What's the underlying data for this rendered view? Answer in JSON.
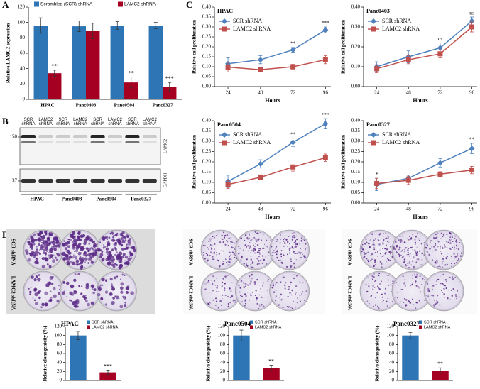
{
  "panel_labels": [
    "A",
    "B",
    "C",
    "D"
  ],
  "chart_data": [
    {
      "type": "bar",
      "ylabel": "Relative LAMC2 expression",
      "legend": "top",
      "categories": [
        "HPAC",
        "Panc0403",
        "Panc0504",
        "Panc0327"
      ],
      "series": [
        {
          "name": "Scrambled (SCR) shRNA",
          "color": "#2e75b6",
          "values": [
            96,
            95,
            96,
            96
          ],
          "errors": [
            10,
            7,
            5,
            4
          ]
        },
        {
          "name": "LAMC2 shRNA",
          "color": "#a50021",
          "values": [
            34,
            89,
            22,
            16
          ],
          "errors": [
            4,
            10,
            7,
            6
          ]
        }
      ],
      "annotations": [
        "**",
        null,
        "**",
        "***"
      ],
      "ylim": [
        0,
        120
      ],
      "yticks": [
        0,
        20,
        40,
        60,
        80,
        100,
        120
      ]
    },
    {
      "type": "line",
      "title": "HPAC",
      "xlabel": "Hours",
      "ylabel": "Relative cell proliferation",
      "legend": "upper left",
      "x": [
        24,
        48,
        72,
        96
      ],
      "xlim": [
        14,
        100
      ],
      "xticks": [
        24,
        48,
        72,
        96
      ],
      "series": [
        {
          "name": "SCR shRNA",
          "color": "#4f81bd",
          "marker": "diamond",
          "values": [
            0.115,
            0.135,
            0.185,
            0.285
          ],
          "errors": [
            0.03,
            0.02,
            0.012,
            0.015
          ]
        },
        {
          "name": "LAMC2 shRNA",
          "color": "#c0504d",
          "marker": "square",
          "values": [
            0.098,
            0.085,
            0.1,
            0.135
          ],
          "errors": [
            0.025,
            0.012,
            0.012,
            0.02
          ]
        }
      ],
      "annotations": [
        null,
        null,
        "**",
        "***"
      ],
      "ylim": [
        0,
        0.4
      ],
      "yticks": [
        {
          "value": 0,
          "label": "0.00"
        },
        {
          "value": 0.05,
          "label": "0.05"
        },
        {
          "value": 0.1,
          "label": "0.10"
        },
        {
          "value": 0.15,
          "label": "0.15"
        },
        {
          "value": 0.2,
          "label": "0.20"
        },
        {
          "value": 0.25,
          "label": "0.25"
        },
        {
          "value": 0.3,
          "label": "0.30"
        },
        {
          "value": 0.35,
          "label": "0.35"
        },
        {
          "value": 0.4,
          "label": "0.40"
        }
      ]
    },
    {
      "type": "line",
      "title": "Panc0403",
      "xlabel": "Hours",
      "ylabel": "Relative cell proliferation",
      "legend": "upper left",
      "x": [
        24,
        48,
        72,
        96
      ],
      "xlim": [
        14,
        100
      ],
      "xticks": [
        24,
        48,
        72,
        96
      ],
      "series": [
        {
          "name": "SCR shRNA",
          "color": "#4f81bd",
          "marker": "diamond",
          "values": [
            0.1,
            0.15,
            0.195,
            0.33
          ],
          "errors": [
            0.025,
            0.03,
            0.025,
            0.02
          ]
        },
        {
          "name": "LAMC2 shRNA",
          "color": "#c0504d",
          "marker": "square",
          "values": [
            0.09,
            0.135,
            0.165,
            0.3
          ],
          "errors": [
            0.02,
            0.02,
            0.02,
            0.025
          ]
        }
      ],
      "annotations": [
        null,
        null,
        "ns",
        "ns"
      ],
      "ylim": [
        0,
        0.4
      ],
      "yticks": [
        {
          "value": 0,
          "label": "0.00"
        },
        {
          "value": 0.1,
          "label": "0.10"
        },
        {
          "value": 0.2,
          "label": "0.20"
        },
        {
          "value": 0.3,
          "label": "0.30"
        },
        {
          "value": 0.4,
          "label": "0.40"
        }
      ]
    },
    {
      "type": "line",
      "title": "Panc0504",
      "xlabel": "Hours",
      "ylabel": "Relative cell proliferation",
      "legend": "upper left",
      "x": [
        24,
        48,
        72,
        96
      ],
      "xlim": [
        14,
        100
      ],
      "xticks": [
        24,
        48,
        72,
        96
      ],
      "series": [
        {
          "name": "SCR shRNA",
          "color": "#4f81bd",
          "marker": "diamond",
          "values": [
            0.105,
            0.19,
            0.295,
            0.385
          ],
          "errors": [
            0.03,
            0.02,
            0.02,
            0.025
          ]
        },
        {
          "name": "LAMC2 shRNA",
          "color": "#c0504d",
          "marker": "square",
          "values": [
            0.09,
            0.125,
            0.175,
            0.22
          ],
          "errors": [
            0.02,
            0.012,
            0.02,
            0.018
          ]
        }
      ],
      "annotations": [
        null,
        null,
        "**",
        "***"
      ],
      "ylim": [
        0,
        0.4
      ],
      "yticks": [
        {
          "value": 0,
          "label": "0.00"
        },
        {
          "value": 0.05,
          "label": "0.05"
        },
        {
          "value": 0.1,
          "label": "0.10"
        },
        {
          "value": 0.15,
          "label": "0.15"
        },
        {
          "value": 0.2,
          "label": "0.20"
        },
        {
          "value": 0.25,
          "label": "0.25"
        },
        {
          "value": 0.3,
          "label": "0.30"
        },
        {
          "value": 0.35,
          "label": "0.35"
        },
        {
          "value": 0.4,
          "label": "0.40"
        }
      ]
    },
    {
      "type": "line",
      "title": "Panc0327",
      "xlabel": "Hours",
      "ylabel": "Relative cell proliferation",
      "legend": "upper left",
      "x": [
        24,
        48,
        72,
        96
      ],
      "xlim": [
        14,
        100
      ],
      "xticks": [
        24,
        48,
        72,
        96
      ],
      "series": [
        {
          "name": "SCR shRNA",
          "color": "#4f81bd",
          "marker": "diamond",
          "values": [
            0.09,
            0.12,
            0.195,
            0.265
          ],
          "errors": [
            0.03,
            0.015,
            0.02,
            0.025
          ]
        },
        {
          "name": "LAMC2 shRNA",
          "color": "#c0504d",
          "marker": "square",
          "values": [
            0.095,
            0.11,
            0.14,
            0.16
          ],
          "errors": [
            0.025,
            0.02,
            0.012,
            0.018
          ]
        }
      ],
      "annotations": [
        "*",
        null,
        null,
        "**"
      ],
      "ylim": [
        0,
        0.4
      ],
      "yticks": [
        {
          "value": 0,
          "label": "0.00"
        },
        {
          "value": 0.05,
          "label": "0.05"
        },
        {
          "value": 0.1,
          "label": "0.10"
        },
        {
          "value": 0.15,
          "label": "0.15"
        },
        {
          "value": 0.2,
          "label": "0.20"
        },
        {
          "value": 0.25,
          "label": "0.25"
        },
        {
          "value": 0.3,
          "label": "0.30"
        },
        {
          "value": 0.35,
          "label": "0.35"
        },
        {
          "value": 0.4,
          "label": "0.40"
        }
      ]
    },
    {
      "type": "bar",
      "title": "HPAC",
      "ylabel": "Relative clonogenicity (%)",
      "legend": "top right",
      "categories": [
        null
      ],
      "series": [
        {
          "name": "SCR shRNA",
          "color": "#2e75b6",
          "values": [
            100
          ],
          "errors": [
            9
          ]
        },
        {
          "name": "LAMC2 shRNA",
          "color": "#a50021",
          "values": [
            18
          ],
          "errors": [
            5
          ]
        }
      ],
      "annotations": [
        "***"
      ],
      "ylim": [
        0,
        120
      ],
      "yticks": [
        0,
        20,
        40,
        60,
        80,
        100,
        120
      ]
    },
    {
      "type": "bar",
      "title": "Panc0504",
      "ylabel": "Relative clonogenicity (%)",
      "legend": "top right",
      "categories": [
        null
      ],
      "series": [
        {
          "name": "SCR shRNA",
          "color": "#2e75b6",
          "values": [
            100
          ],
          "errors": [
            12
          ]
        },
        {
          "name": "LAMC2 shRNA",
          "color": "#a50021",
          "values": [
            28
          ],
          "errors": [
            6
          ]
        }
      ],
      "annotations": [
        "**"
      ],
      "ylim": [
        0,
        120
      ],
      "yticks": [
        0,
        20,
        40,
        60,
        80,
        100,
        120
      ]
    },
    {
      "type": "bar",
      "title": "Panc0327",
      "ylabel": "Relative clonogenicity (%)",
      "legend": "top right",
      "categories": [
        null
      ],
      "series": [
        {
          "name": "SCR shRNA",
          "color": "#2e75b6",
          "values": [
            100
          ],
          "errors": [
            7
          ]
        },
        {
          "name": "LAMC2 shRNA",
          "color": "#a50021",
          "values": [
            22
          ],
          "errors": [
            6
          ]
        }
      ],
      "annotations": [
        "**"
      ],
      "ylim": [
        0,
        120
      ],
      "yticks": [
        0,
        20,
        40,
        60,
        80,
        100,
        120
      ]
    }
  ],
  "blot": {
    "lanes": [
      "SCR shRNA",
      "LAMC2 shRNA",
      "SCR shRNA",
      "LAMC2 shRNA",
      "SCR shRNA",
      "LAMC2 shRNA",
      "SCR shRNA",
      "LAMC2 shRNA"
    ],
    "markers": [
      "150",
      "37"
    ],
    "proteins": [
      "LAMC2",
      "GAPDH"
    ],
    "groups": [
      "HPAC",
      "Panc0403",
      "Panc0504",
      "Panc0327"
    ]
  },
  "colonies": [
    {
      "row_labels": [
        "SCR shRNA",
        "LAMC2 shRNA"
      ]
    },
    {
      "row_labels": [
        "SCR shRNA",
        "LAMC2 shRNA"
      ]
    },
    {
      "row_labels": [
        "SCR shRNA",
        "LAMC2 shRNA"
      ]
    }
  ]
}
